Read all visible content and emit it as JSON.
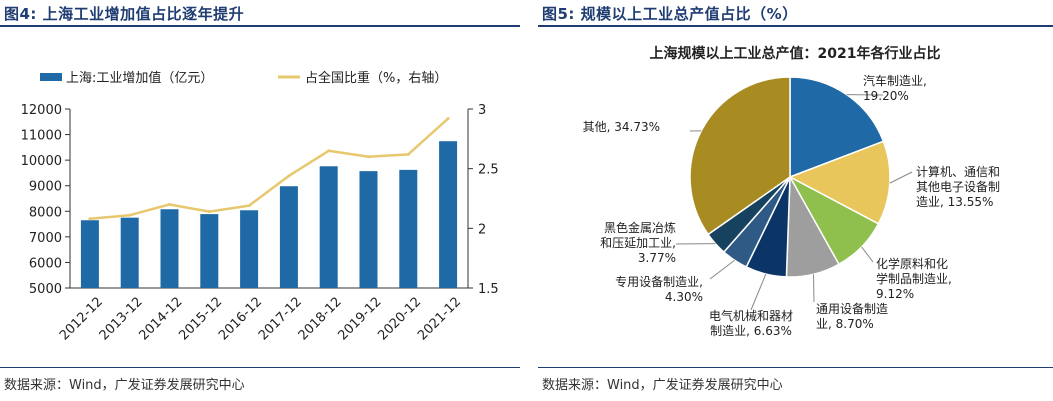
{
  "left_panel": {
    "title": "图4:  上海工业增加值占比逐年提升",
    "source": "数据来源：Wind，广发证券发展研究中心"
  },
  "right_panel": {
    "title": "图5:  规模以上工业总产值占比（%）",
    "source": "数据来源：Wind，广发证券发展研究中心"
  },
  "colors": {
    "title": "#1f3d73",
    "bar": "#1f6aa6",
    "line": "#e8c86e",
    "slices": [
      "#1f6aa6",
      "#e8c65c",
      "#8fbf4d",
      "#9e9e9e",
      "#0b3566",
      "#2f5a85",
      "#17425f",
      "#a88c22"
    ]
  },
  "chart_data": [
    {
      "type": "bar",
      "categories": [
        "2012-12",
        "2013-12",
        "2014-12",
        "2015-12",
        "2016-12",
        "2017-12",
        "2018-12",
        "2019-12",
        "2020-12",
        "2021-12"
      ],
      "series": [
        {
          "name": "上海:工业增加值（亿元）",
          "kind": "bar",
          "axis": "left",
          "values": [
            7650,
            7750,
            8080,
            7890,
            8040,
            8980,
            9760,
            9570,
            9620,
            10740
          ]
        },
        {
          "name": "占全国比重（%，右轴）",
          "kind": "line",
          "axis": "right",
          "values": [
            2.08,
            2.11,
            2.2,
            2.14,
            2.19,
            2.44,
            2.65,
            2.6,
            2.62,
            2.92
          ]
        }
      ],
      "ylim": [
        5000,
        12000
      ],
      "yticks": [
        5000,
        6000,
        7000,
        8000,
        9000,
        10000,
        11000,
        12000
      ],
      "y2lim": [
        1.5,
        3
      ],
      "y2ticks": [
        1.5,
        2,
        2.5,
        3
      ],
      "legend_position": "top",
      "grid": false
    },
    {
      "type": "pie",
      "title": "上海规模以上工业总产值：2021年各行业占比",
      "slices": [
        {
          "label": [
            "汽车制造业,",
            "19.20%"
          ],
          "value": 19.2
        },
        {
          "label": [
            "计算机、通信和",
            "其他电子设备制",
            "造业, 13.55%"
          ],
          "value": 13.55
        },
        {
          "label": [
            "化学原料和化",
            "学制品制造业,",
            "9.12%"
          ],
          "value": 9.12
        },
        {
          "label": [
            "通用设备制造",
            "业, 8.70%"
          ],
          "value": 8.7
        },
        {
          "label": [
            "电气机械和器材",
            "制造业, 6.63%"
          ],
          "value": 6.63
        },
        {
          "label": [
            "专用设备制造业,",
            "4.30%"
          ],
          "value": 4.3
        },
        {
          "label": [
            "黑色金属冶炼",
            "和压延加工业,",
            "3.77%"
          ],
          "value": 3.77
        },
        {
          "label": [
            "其他, 34.73%"
          ],
          "value": 34.73
        }
      ]
    }
  ]
}
